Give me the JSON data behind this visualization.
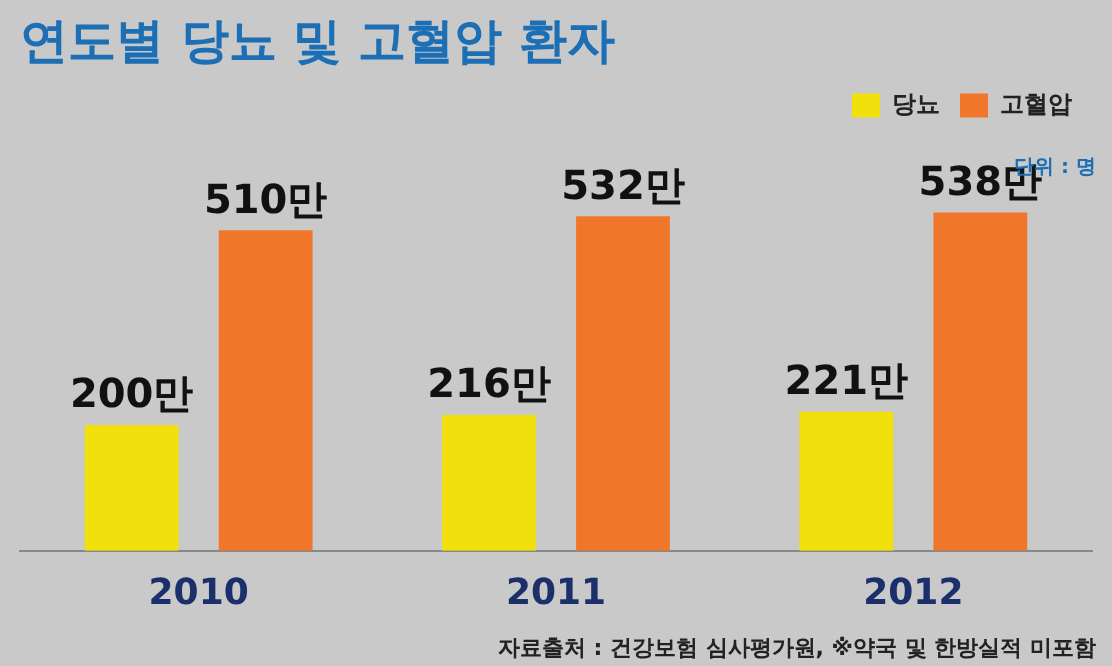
{
  "chart_data": {
    "type": "bar",
    "title": "연도별 당뇨 및 고혈압 환자",
    "categories": [
      "2010",
      "2011",
      "2012"
    ],
    "series": [
      {
        "name": "당뇨",
        "color": "#f2e00c",
        "values": [
          200,
          216,
          221
        ],
        "value_labels": [
          "200만",
          "216만",
          "221만"
        ]
      },
      {
        "name": "고혈압",
        "color": "#f0762a",
        "values": [
          510,
          532,
          538
        ],
        "value_labels": [
          "510만",
          "532만",
          "538만"
        ]
      }
    ],
    "legend": "top right",
    "grid": false,
    "annotations": [
      "단위 : 명",
      "자료출처 : 건강보험 심사평가원, ※약국 및 한방실적 미포함"
    ]
  }
}
